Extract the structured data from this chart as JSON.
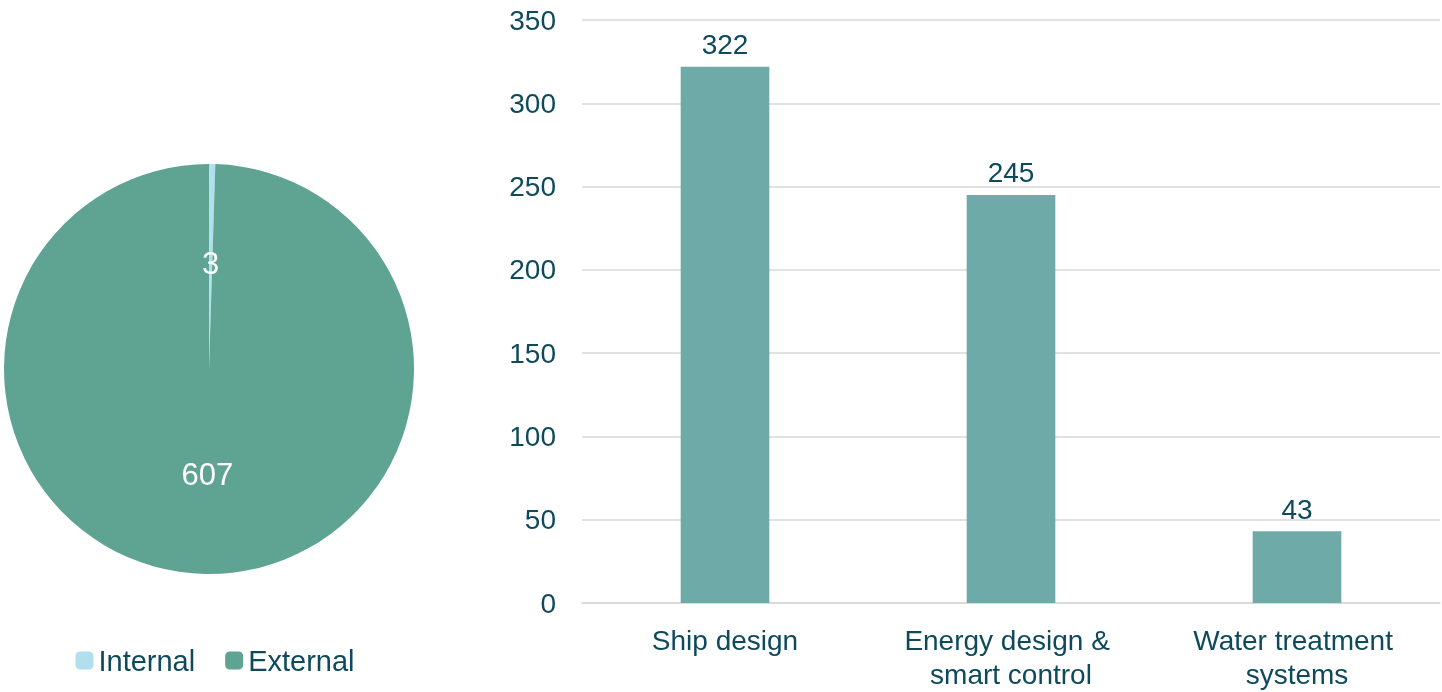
{
  "chart_data": [
    {
      "type": "pie",
      "categories": [
        "Internal",
        "External"
      ],
      "values": [
        3,
        607
      ],
      "colors": [
        "#b0e0ee",
        "#5fa392"
      ],
      "data_labels": true,
      "legend": "bottom"
    },
    {
      "type": "bar",
      "categories": [
        "Ship design",
        "Energy design & smart control",
        "Water treatment systems"
      ],
      "values": [
        322,
        245,
        43
      ],
      "color": "#6eaba8",
      "ylim": [
        0,
        350
      ],
      "yticks": [
        0,
        50,
        100,
        150,
        200,
        250,
        300,
        350
      ],
      "grid": "y",
      "data_labels": true,
      "legend": false
    }
  ]
}
